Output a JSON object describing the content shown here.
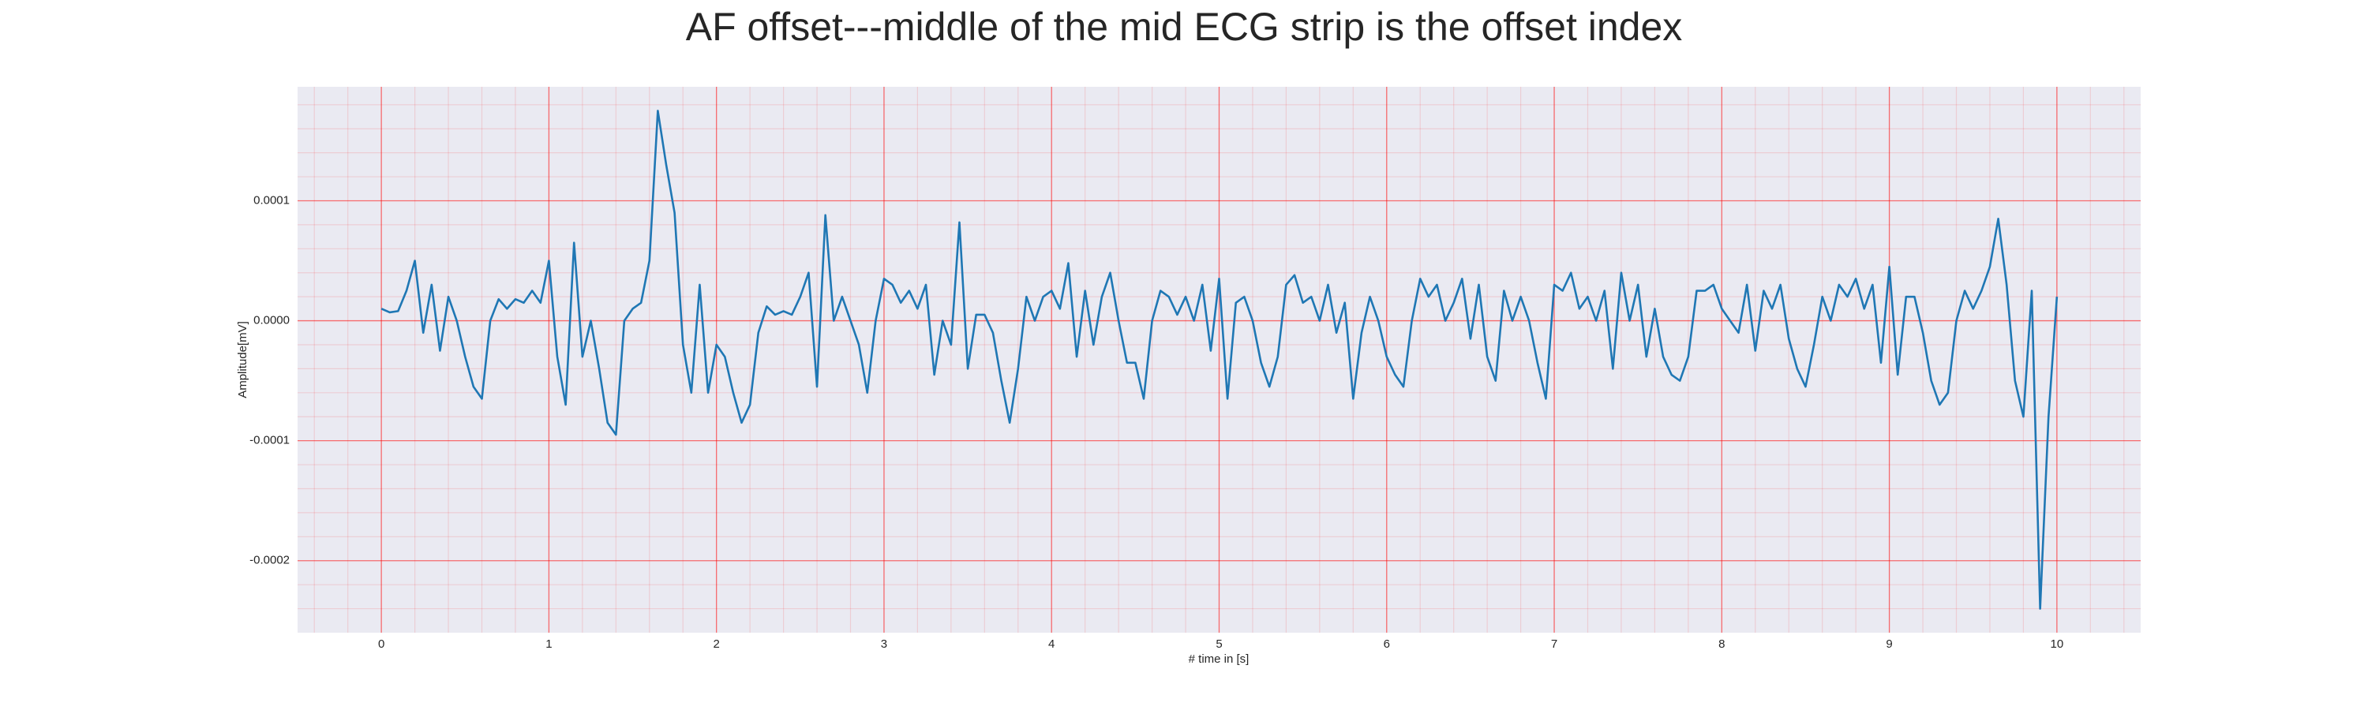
{
  "chart_data": {
    "type": "line",
    "title": "AF offset---middle of the mid ECG strip is the offset index",
    "xlabel": "# time in [s]",
    "ylabel": "Amplitude[mV]",
    "color": "#1f77b4",
    "grid": true,
    "grid_color": "#ff0000",
    "minor_grid": true,
    "minor_divisions": 5,
    "xlim": [
      -0.5,
      10.5
    ],
    "ylim": [
      -0.00026,
      0.000195
    ],
    "xticks": [
      0,
      1,
      2,
      3,
      4,
      5,
      6,
      7,
      8,
      9,
      10
    ],
    "yticks": [
      -0.0002,
      -0.0001,
      {
        "value": 0,
        "label": "0.0000"
      },
      0.0001
    ],
    "x": [
      0,
      0.05,
      0.1,
      0.15,
      0.2,
      0.25,
      0.3,
      0.35,
      0.4,
      0.45,
      0.5,
      0.55,
      0.6,
      0.65,
      0.7,
      0.75,
      0.8,
      0.85,
      0.9,
      0.95,
      1,
      1.05,
      1.1,
      1.15,
      1.2,
      1.25,
      1.3,
      1.35,
      1.4,
      1.45,
      1.5,
      1.55,
      1.6,
      1.65,
      1.7,
      1.75,
      1.8,
      1.85,
      1.9,
      1.95,
      2,
      2.05,
      2.1,
      2.15,
      2.2,
      2.25,
      2.3,
      2.35,
      2.4,
      2.45,
      2.5,
      2.55,
      2.6,
      2.65,
      2.7,
      2.75,
      2.8,
      2.85,
      2.9,
      2.95,
      3,
      3.05,
      3.1,
      3.15,
      3.2,
      3.25,
      3.3,
      3.35,
      3.4,
      3.45,
      3.5,
      3.55,
      3.6,
      3.65,
      3.7,
      3.75,
      3.8,
      3.85,
      3.9,
      3.95,
      4,
      4.05,
      4.1,
      4.15,
      4.2,
      4.25,
      4.3,
      4.35,
      4.4,
      4.45,
      4.5,
      4.55,
      4.6,
      4.65,
      4.7,
      4.75,
      4.8,
      4.85,
      4.9,
      4.95,
      5,
      5.05,
      5.1,
      5.15,
      5.2,
      5.25,
      5.3,
      5.35,
      5.4,
      5.45,
      5.5,
      5.55,
      5.6,
      5.65,
      5.7,
      5.75,
      5.8,
      5.85,
      5.9,
      5.95,
      6,
      6.05,
      6.1,
      6.15,
      6.2,
      6.25,
      6.3,
      6.35,
      6.4,
      6.45,
      6.5,
      6.55,
      6.6,
      6.65,
      6.7,
      6.75,
      6.8,
      6.85,
      6.9,
      6.95,
      7,
      7.05,
      7.1,
      7.15,
      7.2,
      7.25,
      7.3,
      7.35,
      7.4,
      7.45,
      7.5,
      7.55,
      7.6,
      7.65,
      7.7,
      7.75,
      7.8,
      7.85,
      7.9,
      7.95,
      8,
      8.05,
      8.1,
      8.15,
      8.2,
      8.25,
      8.3,
      8.35,
      8.4,
      8.45,
      8.5,
      8.55,
      8.6,
      8.65,
      8.7,
      8.75,
      8.8,
      8.85,
      8.9,
      8.95,
      9,
      9.05,
      9.1,
      9.15,
      9.2,
      9.25,
      9.3,
      9.35,
      9.4,
      9.45,
      9.5,
      9.55,
      9.6,
      9.65,
      9.7,
      9.75,
      9.8,
      9.85,
      9.9,
      9.95,
      10
    ],
    "values": [
      1e-05,
      7e-06,
      8e-06,
      2.5e-05,
      5e-05,
      -1e-05,
      3e-05,
      -2.5e-05,
      2e-05,
      0,
      -3e-05,
      -5.5e-05,
      -6.5e-05,
      0,
      1.8e-05,
      1e-05,
      1.8e-05,
      1.5e-05,
      2.5e-05,
      1.5e-05,
      5e-05,
      -3e-05,
      -7e-05,
      6.5e-05,
      -3e-05,
      0,
      -4e-05,
      -8.5e-05,
      -9.5e-05,
      0,
      1e-05,
      1.5e-05,
      5e-05,
      0.000175,
      0.00013,
      9e-05,
      -2e-05,
      -6e-05,
      3e-05,
      -6e-05,
      -2e-05,
      -3e-05,
      -6e-05,
      -8.5e-05,
      -7e-05,
      -1e-05,
      1.2e-05,
      5e-06,
      8e-06,
      5e-06,
      2e-05,
      4e-05,
      -5.5e-05,
      8.8e-05,
      0,
      2e-05,
      0,
      -2e-05,
      -6e-05,
      0,
      3.5e-05,
      3e-05,
      1.5e-05,
      2.5e-05,
      1e-05,
      3e-05,
      -4.5e-05,
      0,
      -2e-05,
      8.2e-05,
      -4e-05,
      5e-06,
      5e-06,
      -1e-05,
      -5e-05,
      -8.5e-05,
      -4e-05,
      2e-05,
      0,
      2e-05,
      2.5e-05,
      1e-05,
      4.8e-05,
      -3e-05,
      2.5e-05,
      -2e-05,
      2e-05,
      4e-05,
      0,
      -3.5e-05,
      -3.5e-05,
      -6.5e-05,
      0,
      2.5e-05,
      2e-05,
      5e-06,
      2e-05,
      0,
      3e-05,
      -2.5e-05,
      3.5e-05,
      -6.5e-05,
      1.5e-05,
      2e-05,
      0,
      -3.5e-05,
      -5.5e-05,
      -3e-05,
      3e-05,
      3.8e-05,
      1.5e-05,
      2e-05,
      0,
      3e-05,
      -1e-05,
      1.5e-05,
      -6.5e-05,
      -1e-05,
      2e-05,
      0,
      -3e-05,
      -4.5e-05,
      -5.5e-05,
      0,
      3.5e-05,
      2e-05,
      3e-05,
      0,
      1.5e-05,
      3.5e-05,
      -1.5e-05,
      3e-05,
      -3e-05,
      -5e-05,
      2.5e-05,
      0,
      2e-05,
      0,
      -3.5e-05,
      -6.5e-05,
      3e-05,
      2.5e-05,
      4e-05,
      1e-05,
      2e-05,
      0,
      2.5e-05,
      -4e-05,
      4e-05,
      0,
      3e-05,
      -3e-05,
      1e-05,
      -3e-05,
      -4.5e-05,
      -5e-05,
      -3e-05,
      2.5e-05,
      2.5e-05,
      3e-05,
      1e-05,
      0,
      -1e-05,
      3e-05,
      -2.5e-05,
      2.5e-05,
      1e-05,
      3e-05,
      -1.5e-05,
      -4e-05,
      -5.5e-05,
      -2e-05,
      2e-05,
      0,
      3e-05,
      2e-05,
      3.5e-05,
      1e-05,
      3e-05,
      -3.5e-05,
      4.5e-05,
      -4.5e-05,
      2e-05,
      2e-05,
      -1e-05,
      -5e-05,
      -7e-05,
      -6e-05,
      0,
      2.5e-05,
      1e-05,
      2.5e-05,
      4.5e-05,
      8.5e-05,
      3e-05,
      -5e-05,
      -8e-05,
      2.5e-05,
      -0.00024,
      -8e-05,
      2e-05
    ]
  }
}
